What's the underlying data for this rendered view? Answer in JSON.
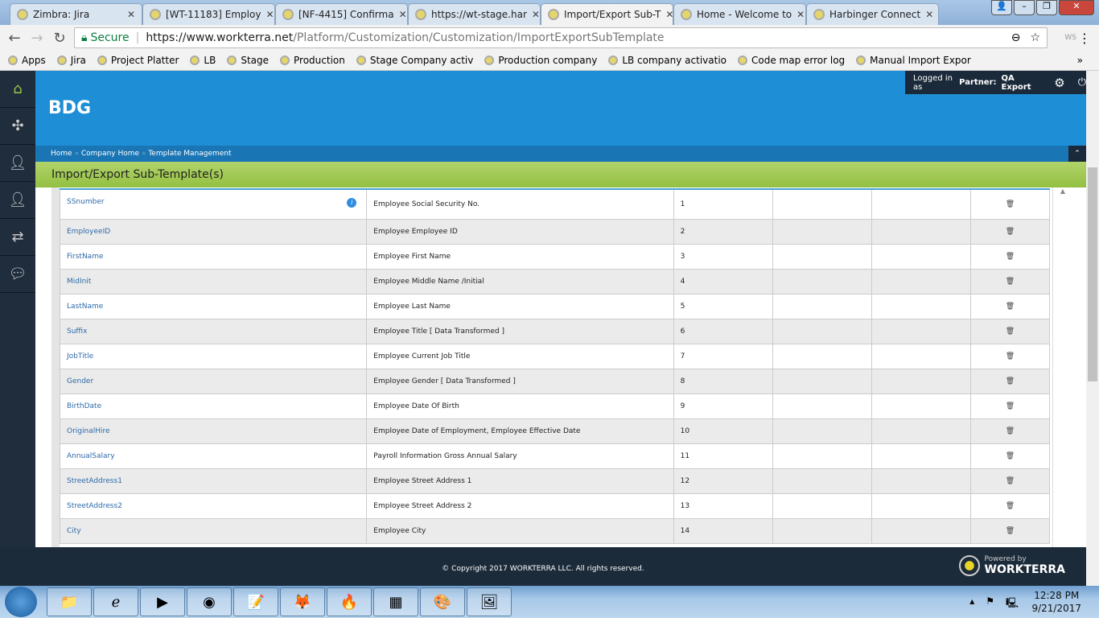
{
  "browser": {
    "tabs": [
      {
        "title": "Zimbra: Jira",
        "active": false
      },
      {
        "title": "[WT-11183] Employ",
        "active": false
      },
      {
        "title": "[NF-4415] Confirma",
        "active": false
      },
      {
        "title": "https://wt-stage.har",
        "active": false
      },
      {
        "title": "Import/Export Sub-T",
        "active": true
      },
      {
        "title": "Home - Welcome to",
        "active": false
      },
      {
        "title": "Harbinger Connect",
        "active": false
      }
    ],
    "secure_label": "Secure",
    "url_host": "https://www.workterra.net",
    "url_path": "/Platform/Customization/Customization/ImportExportSubTemplate",
    "bookmarks": [
      "Apps",
      "Jira",
      "Project Platter",
      "LB",
      "Stage",
      "Production",
      "Stage Company activ",
      "Production company",
      "LB company activatio",
      "Code map error log",
      "Manual Import Expor"
    ],
    "more": "»"
  },
  "header": {
    "company": "BDG",
    "login_prefix": "Logged in as",
    "login_role": "Partner:",
    "login_user": "QA Export"
  },
  "breadcrumb": [
    "Home",
    "Company Home",
    "Template Management"
  ],
  "page_title": "Import/Export Sub-Template(s)",
  "rows": [
    {
      "field": "SSnumber",
      "desc": "Employee Social Security No.",
      "order": "1",
      "info": true
    },
    {
      "field": "EmployeeID",
      "desc": "Employee Employee ID",
      "order": "2"
    },
    {
      "field": "FirstName",
      "desc": "Employee First Name",
      "order": "3"
    },
    {
      "field": "MidInit",
      "desc": "Employee Middle Name /Initial",
      "order": "4"
    },
    {
      "field": "LastName",
      "desc": "Employee Last Name",
      "order": "5"
    },
    {
      "field": "Suffix",
      "desc": "Employee Title [ Data Transformed ]",
      "order": "6"
    },
    {
      "field": "JobTitle",
      "desc": "Employee Current Job Title",
      "order": "7"
    },
    {
      "field": "Gender",
      "desc": "Employee Gender [ Data Transformed ]",
      "order": "8"
    },
    {
      "field": "BirthDate",
      "desc": "Employee Date Of Birth",
      "order": "9"
    },
    {
      "field": "OriginalHire",
      "desc": "Employee Date of Employment, Employee Effective Date",
      "order": "10"
    },
    {
      "field": "AnnualSalary",
      "desc": "Payroll Information Gross Annual Salary",
      "order": "11"
    },
    {
      "field": "StreetAddress1",
      "desc": "Employee Street Address 1",
      "order": "12"
    },
    {
      "field": "StreetAddress2",
      "desc": "Employee Street Address 2",
      "order": "13"
    },
    {
      "field": "City",
      "desc": "Employee City",
      "order": "14"
    }
  ],
  "footer": {
    "copyright": "© Copyright 2017 WORKTERRA LLC. All rights reserved.",
    "powered": "Powered by",
    "brand": "WORKTERRA"
  },
  "taskbar": {
    "time": "12:28 PM",
    "date": "9/21/2017"
  },
  "colors": {
    "header": "#1e8fd6",
    "title_bar": "#9ac64a",
    "sidebar": "#1f2d3d",
    "link": "#2d6aa8"
  }
}
